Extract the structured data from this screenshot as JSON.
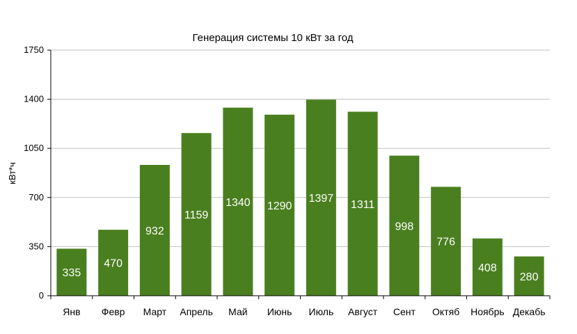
{
  "chart_data": {
    "type": "bar",
    "title": "Генерация системы 10 кВт за год",
    "xlabel": "",
    "ylabel": "кВт*ч",
    "ylim": [
      0,
      1750
    ],
    "yticks": [
      "0",
      "350",
      "700",
      "1050",
      "1400",
      "1750"
    ],
    "ytick_values": [
      0,
      350,
      700,
      1050,
      1400,
      1750
    ],
    "grid": true,
    "legend": "none",
    "bar_color": "#4a7f1f",
    "categories": [
      "Янв",
      "Февр",
      "Март",
      "Апрель",
      "Май",
      "Июнь",
      "Июль",
      "Август",
      "Сент",
      "Октяб",
      "Ноябрь",
      "Декабь"
    ],
    "values": [
      335,
      470,
      932,
      1159,
      1340,
      1290,
      1397,
      1311,
      998,
      776,
      408,
      280
    ],
    "value_labels": [
      "335",
      "470",
      "932",
      "1159",
      "1340",
      "1290",
      "1397",
      "1311",
      "998",
      "776",
      "408",
      "280"
    ]
  }
}
